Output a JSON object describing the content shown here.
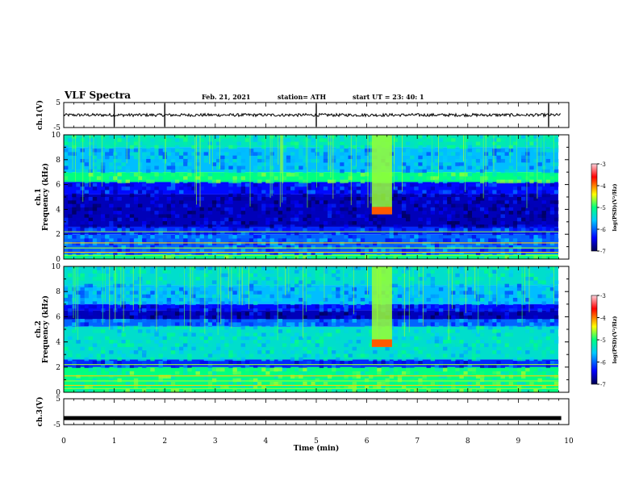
{
  "header": {
    "title": "VLF Spectra",
    "date": "Feb. 21, 2021",
    "station": "station= ATH",
    "start": "start  UT  =   23: 40: 1"
  },
  "colors": {
    "background": "#ffffff",
    "axes": "#000000",
    "colormap": [
      "#00004f",
      "#0000ff",
      "#00c8ff",
      "#00ff80",
      "#ffff00",
      "#ff0000",
      "#ffd2dc"
    ]
  },
  "chart_data": [
    {
      "id": "ch1",
      "type": "line",
      "ylabel": "ch.1(V)",
      "ylim": [
        -5,
        5
      ],
      "y_ticks": [
        "5",
        "-5"
      ],
      "x_ticks": [
        "0",
        "1",
        "2",
        "3",
        "4",
        "5",
        "6",
        "7",
        "8",
        "9",
        "10"
      ],
      "xlim": [
        0,
        10
      ],
      "series": [
        {
          "values_note_mean": 0,
          "x": [
            0,
            9.85
          ],
          "y": [
            0,
            0
          ]
        }
      ],
      "notes": "continuous noisy waveform around 0 V, small amplitude"
    },
    {
      "id": "ch1_spectrogram",
      "type": "heatmap",
      "ylabel": "ch.1\nFrequency (kHz)",
      "ylim": [
        0,
        10
      ],
      "y_ticks": [
        "0",
        "2",
        "4",
        "6",
        "8",
        "10"
      ],
      "xlim": [
        0,
        10
      ],
      "colorbar": {
        "label": "log(PSD)(V²/Hz)",
        "range": [
          -7,
          -3
        ],
        "ticks": [
          "-3",
          "-4",
          "-5",
          "-6",
          "-7"
        ]
      },
      "bands_khz": [
        {
          "from": 9.0,
          "to": 10.0,
          "level": -5.3
        },
        {
          "from": 7.0,
          "to": 9.0,
          "level": -5.7
        },
        {
          "from": 6.2,
          "to": 7.0,
          "level": -5.0
        },
        {
          "from": 5.2,
          "to": 6.2,
          "level": -6.3
        },
        {
          "from": 2.6,
          "to": 5.2,
          "level": -6.6
        },
        {
          "from": 2.0,
          "to": 2.6,
          "level": -6.2
        },
        {
          "from": 0.4,
          "to": 2.0,
          "level": -6.0
        },
        {
          "from": 0.0,
          "to": 0.4,
          "level": -5.0
        }
      ],
      "events": [
        {
          "t_start": 6.1,
          "t_end": 6.5,
          "f_low": 3.6,
          "f_high": 10.0,
          "level": -4.6
        }
      ]
    },
    {
      "id": "ch2_spectrogram",
      "type": "heatmap",
      "ylabel": "ch.2\nFrequency (kHz)",
      "ylim": [
        0,
        10
      ],
      "y_ticks": [
        "0",
        "2",
        "4",
        "6",
        "8",
        "10"
      ],
      "xlim": [
        0,
        10
      ],
      "colorbar": {
        "label": "log(PSD)(V²/Hz)",
        "range": [
          -7,
          -3
        ],
        "ticks": [
          "-3",
          "-4",
          "-5",
          "-6",
          "-7"
        ]
      },
      "bands_khz": [
        {
          "from": 8.5,
          "to": 10.0,
          "level": -5.4
        },
        {
          "from": 7.0,
          "to": 8.5,
          "level": -5.7
        },
        {
          "from": 6.5,
          "to": 7.0,
          "level": -6.3
        },
        {
          "from": 5.8,
          "to": 6.5,
          "level": -6.6
        },
        {
          "from": 5.2,
          "to": 5.8,
          "level": -6.0
        },
        {
          "from": 2.6,
          "to": 5.2,
          "level": -5.4
        },
        {
          "from": 2.0,
          "to": 2.6,
          "level": -6.2
        },
        {
          "from": 0.0,
          "to": 2.0,
          "level": -5.0
        }
      ],
      "events": [
        {
          "t_start": 6.1,
          "t_end": 6.5,
          "f_low": 3.6,
          "f_high": 10.0,
          "level": -4.6
        }
      ]
    },
    {
      "id": "ch3",
      "type": "line",
      "ylabel": "ch.3(V)",
      "ylim": [
        -5,
        5
      ],
      "y_ticks": [
        "5",
        "-5"
      ],
      "xlabel": "Time (min)",
      "x_ticks": [
        "0",
        "1",
        "2",
        "3",
        "4",
        "5",
        "6",
        "7",
        "8",
        "9",
        "10"
      ],
      "xlim": [
        0,
        10
      ],
      "series": [
        {
          "x": [
            0,
            9.85
          ],
          "y": [
            -2.5,
            -2.5
          ]
        }
      ]
    }
  ]
}
